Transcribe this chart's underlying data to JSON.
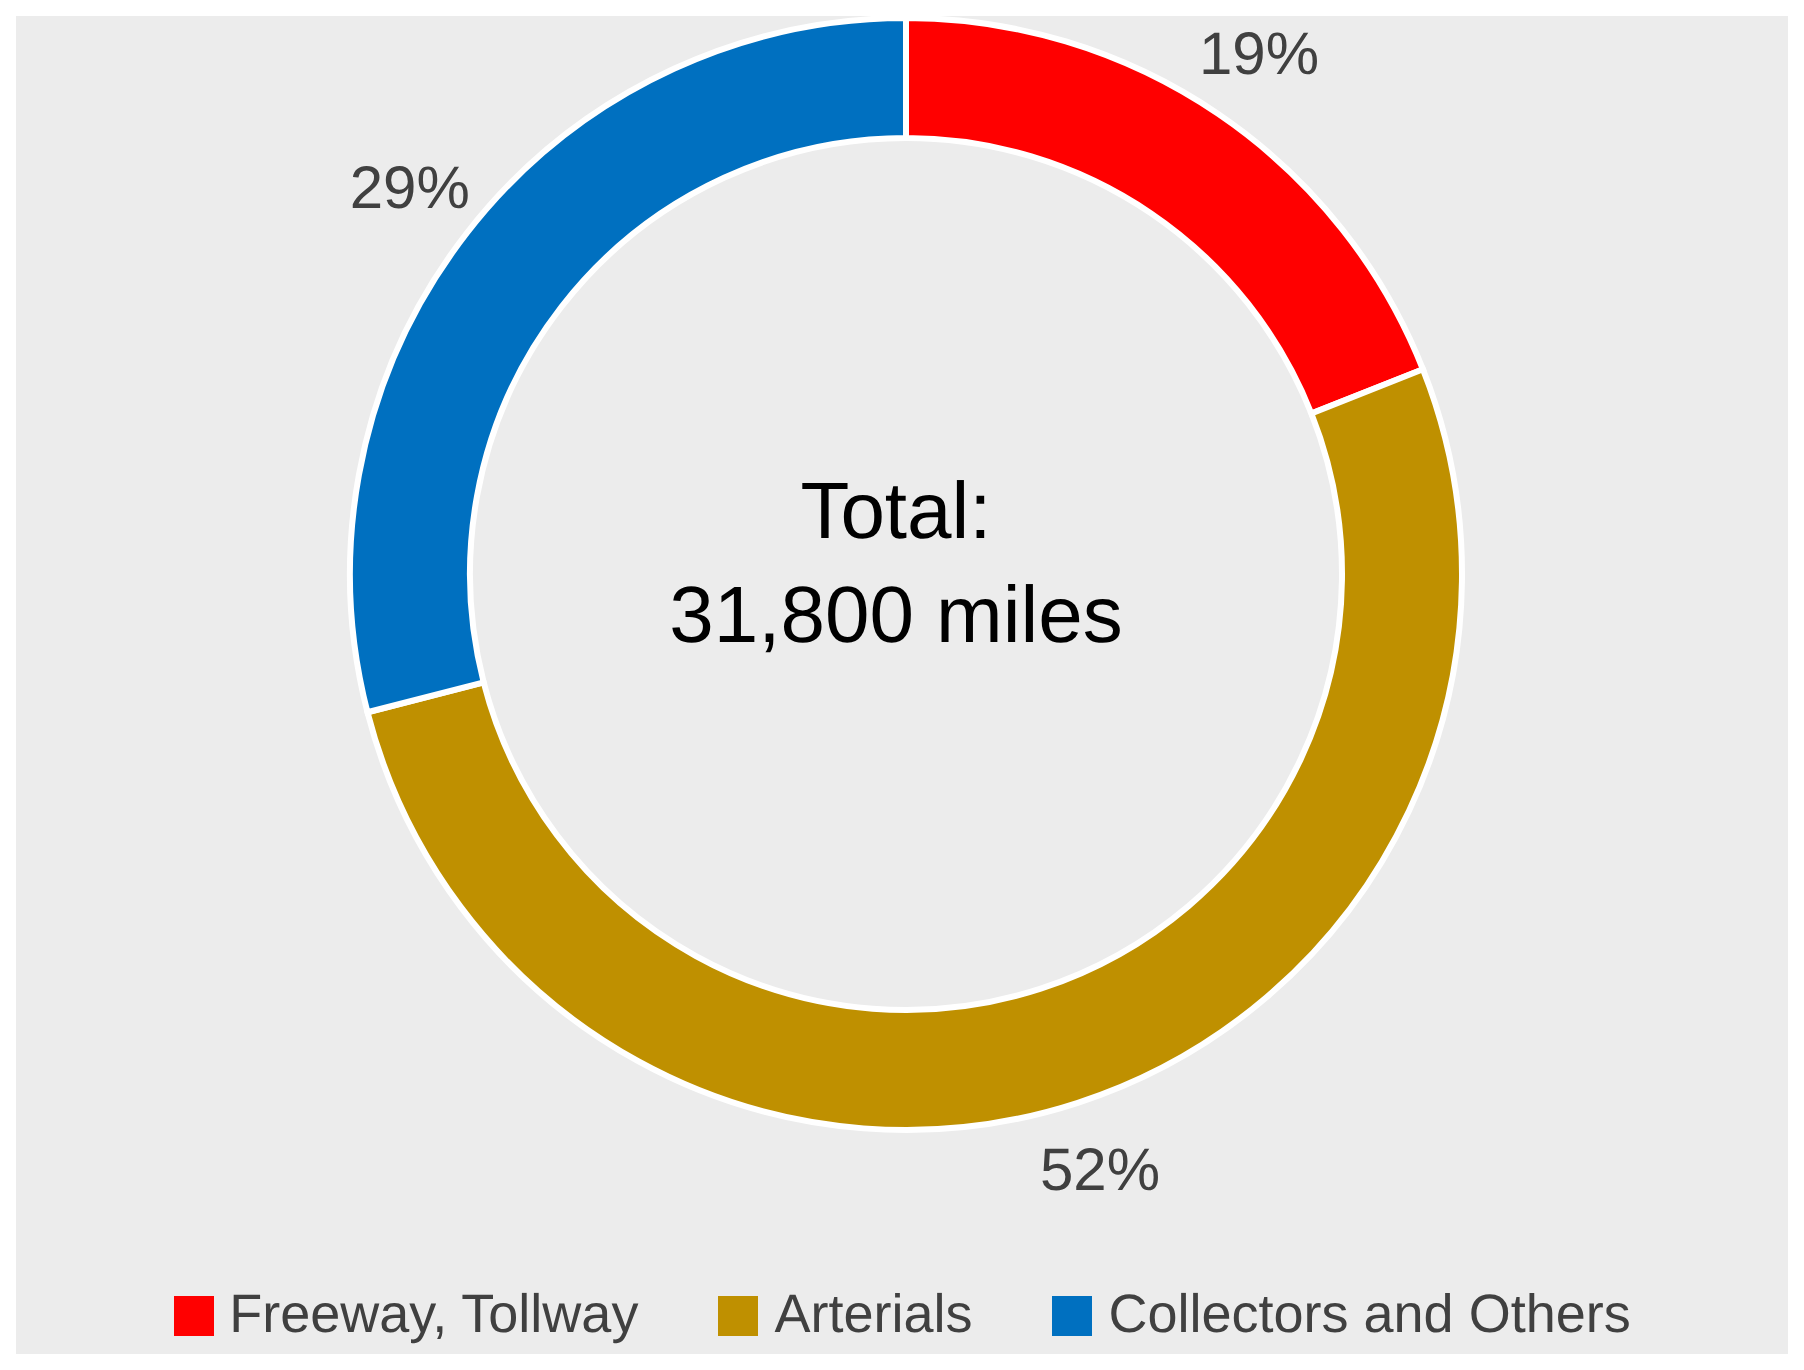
{
  "chart_data": {
    "type": "donut",
    "categories": [
      "Freeway, Tollway",
      "Arterials",
      "Collectors and Others"
    ],
    "values": [
      19,
      52,
      29
    ],
    "colors": [
      "#ff0000",
      "#bf9000",
      "#0070c0"
    ],
    "value_labels": [
      "19%",
      "52%",
      "29%"
    ],
    "annotations": [
      "Total:",
      "31,800 miles"
    ],
    "legend": "bottom"
  }
}
